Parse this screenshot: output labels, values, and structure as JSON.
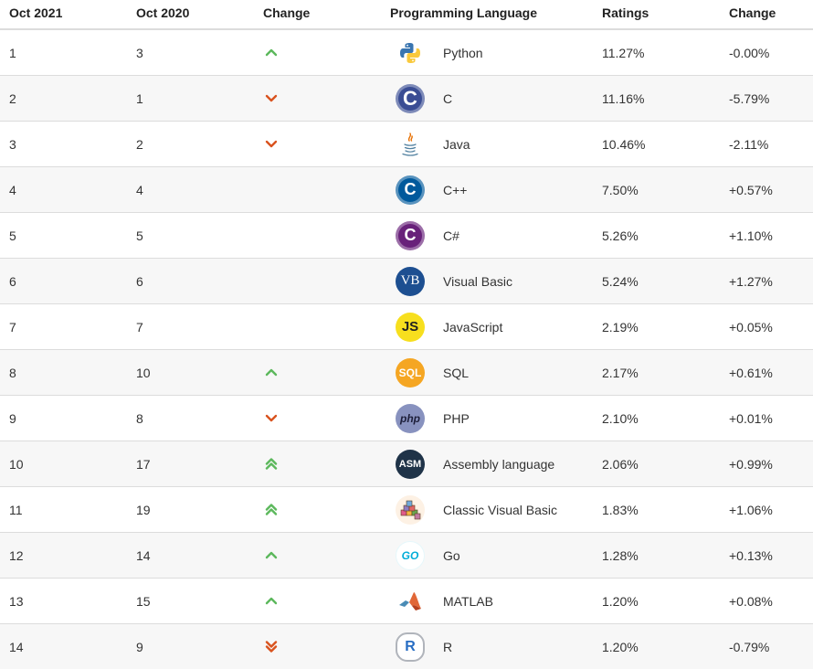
{
  "headers": {
    "oct2021": "Oct 2021",
    "oct2020": "Oct 2020",
    "change_icon": "Change",
    "language": "Programming Language",
    "ratings": "Ratings",
    "change": "Change"
  },
  "colors": {
    "up": "#5cb85c",
    "down": "#d9531e"
  },
  "rows": [
    {
      "oct2021": "1",
      "oct2020": "3",
      "trend": "up",
      "logo": "python-logo-icon",
      "logo_text": "",
      "language": "Python",
      "ratings": "11.27%",
      "change": "-0.00%"
    },
    {
      "oct2021": "2",
      "oct2020": "1",
      "trend": "down",
      "logo": "c-logo-icon",
      "logo_text": "C",
      "language": "C",
      "ratings": "11.16%",
      "change": "-5.79%"
    },
    {
      "oct2021": "3",
      "oct2020": "2",
      "trend": "down",
      "logo": "java-logo-icon",
      "logo_text": "",
      "language": "Java",
      "ratings": "10.46%",
      "change": "-2.11%"
    },
    {
      "oct2021": "4",
      "oct2020": "4",
      "trend": "none",
      "logo": "cpp-logo-icon",
      "logo_text": "C",
      "language": "C++",
      "ratings": "7.50%",
      "change": "+0.57%"
    },
    {
      "oct2021": "5",
      "oct2020": "5",
      "trend": "none",
      "logo": "csharp-logo-icon",
      "logo_text": "C",
      "language": "C#",
      "ratings": "5.26%",
      "change": "+1.10%"
    },
    {
      "oct2021": "6",
      "oct2020": "6",
      "trend": "none",
      "logo": "visual-basic-logo-icon",
      "logo_text": "VB",
      "language": "Visual Basic",
      "ratings": "5.24%",
      "change": "+1.27%"
    },
    {
      "oct2021": "7",
      "oct2020": "7",
      "trend": "none",
      "logo": "javascript-logo-icon",
      "logo_text": "JS",
      "language": "JavaScript",
      "ratings": "2.19%",
      "change": "+0.05%"
    },
    {
      "oct2021": "8",
      "oct2020": "10",
      "trend": "up",
      "logo": "sql-logo-icon",
      "logo_text": "SQL",
      "language": "SQL",
      "ratings": "2.17%",
      "change": "+0.61%"
    },
    {
      "oct2021": "9",
      "oct2020": "8",
      "trend": "down",
      "logo": "php-logo-icon",
      "logo_text": "php",
      "language": "PHP",
      "ratings": "2.10%",
      "change": "+0.01%"
    },
    {
      "oct2021": "10",
      "oct2020": "17",
      "trend": "double-up",
      "logo": "assembly-logo-icon",
      "logo_text": "ASM",
      "language": "Assembly language",
      "ratings": "2.06%",
      "change": "+0.99%"
    },
    {
      "oct2021": "11",
      "oct2020": "19",
      "trend": "double-up",
      "logo": "classic-visual-basic-logo-icon",
      "logo_text": "",
      "language": "Classic Visual Basic",
      "ratings": "1.83%",
      "change": "+1.06%"
    },
    {
      "oct2021": "12",
      "oct2020": "14",
      "trend": "up",
      "logo": "go-logo-icon",
      "logo_text": "GO",
      "language": "Go",
      "ratings": "1.28%",
      "change": "+0.13%"
    },
    {
      "oct2021": "13",
      "oct2020": "15",
      "trend": "up",
      "logo": "matlab-logo-icon",
      "logo_text": "",
      "language": "MATLAB",
      "ratings": "1.20%",
      "change": "+0.08%"
    },
    {
      "oct2021": "14",
      "oct2020": "9",
      "trend": "double-down",
      "logo": "r-logo-icon",
      "logo_text": "R",
      "language": "R",
      "ratings": "1.20%",
      "change": "-0.79%"
    }
  ]
}
